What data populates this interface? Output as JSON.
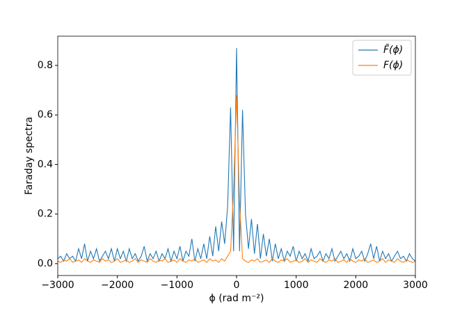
{
  "chart_data": {
    "type": "line",
    "xlabel": "ϕ (rad m⁻²)",
    "ylabel": "Faraday spectra",
    "x": [
      -3000,
      -2950,
      -2900,
      -2850,
      -2800,
      -2750,
      -2700,
      -2650,
      -2600,
      -2550,
      -2500,
      -2450,
      -2400,
      -2350,
      -2300,
      -2250,
      -2200,
      -2150,
      -2100,
      -2050,
      -2000,
      -1950,
      -1900,
      -1850,
      -1800,
      -1750,
      -1700,
      -1650,
      -1600,
      -1550,
      -1500,
      -1450,
      -1400,
      -1350,
      -1300,
      -1250,
      -1200,
      -1150,
      -1100,
      -1050,
      -1000,
      -950,
      -900,
      -850,
      -800,
      -750,
      -700,
      -650,
      -600,
      -550,
      -500,
      -450,
      -400,
      -350,
      -300,
      -250,
      -200,
      -150,
      -100,
      -50,
      0,
      50,
      100,
      150,
      200,
      250,
      300,
      350,
      400,
      450,
      500,
      550,
      600,
      650,
      700,
      750,
      800,
      850,
      900,
      950,
      1000,
      1050,
      1100,
      1150,
      1200,
      1250,
      1300,
      1350,
      1400,
      1450,
      1500,
      1550,
      1600,
      1650,
      1700,
      1750,
      1800,
      1850,
      1900,
      1950,
      2000,
      2050,
      2100,
      2150,
      2200,
      2250,
      2300,
      2350,
      2400,
      2450,
      2500,
      2550,
      2600,
      2650,
      2700,
      2750,
      2800,
      2850,
      2900,
      2950,
      3000
    ],
    "series": [
      {
        "name": "F̃(ϕ)",
        "color": "#1f77b4",
        "values": [
          0.02,
          0.03,
          0.01,
          0.04,
          0.02,
          0.03,
          0.01,
          0.06,
          0.02,
          0.08,
          0.01,
          0.05,
          0.02,
          0.06,
          0.01,
          0.03,
          0.05,
          0.02,
          0.06,
          0.01,
          0.06,
          0.02,
          0.05,
          0.01,
          0.06,
          0.02,
          0.04,
          0.01,
          0.03,
          0.07,
          0.01,
          0.04,
          0.02,
          0.05,
          0.01,
          0.04,
          0.02,
          0.06,
          0.01,
          0.05,
          0.02,
          0.07,
          0.01,
          0.05,
          0.03,
          0.1,
          0.01,
          0.06,
          0.02,
          0.08,
          0.02,
          0.11,
          0.03,
          0.15,
          0.05,
          0.17,
          0.08,
          0.23,
          0.63,
          0.05,
          0.87,
          0.05,
          0.62,
          0.2,
          0.06,
          0.18,
          0.04,
          0.16,
          0.02,
          0.12,
          0.03,
          0.1,
          0.01,
          0.08,
          0.02,
          0.06,
          0.01,
          0.05,
          0.03,
          0.07,
          0.01,
          0.05,
          0.02,
          0.04,
          0.01,
          0.06,
          0.02,
          0.03,
          0.05,
          0.01,
          0.04,
          0.02,
          0.06,
          0.01,
          0.03,
          0.05,
          0.02,
          0.04,
          0.01,
          0.06,
          0.02,
          0.03,
          0.05,
          0.01,
          0.04,
          0.08,
          0.02,
          0.07,
          0.01,
          0.05,
          0.02,
          0.04,
          0.01,
          0.03,
          0.05,
          0.02,
          0.03,
          0.01,
          0.04,
          0.02,
          0.01
        ]
      },
      {
        "name": "F(ϕ)",
        "color": "#ff7f0e",
        "values": [
          0.01,
          0.005,
          0.015,
          0.01,
          0.02,
          0.005,
          0.01,
          0.015,
          0.005,
          0.02,
          0.01,
          0.005,
          0.015,
          0.01,
          0.005,
          0.02,
          0.01,
          0.015,
          0.005,
          0.01,
          0.02,
          0.005,
          0.01,
          0.015,
          0.005,
          0.01,
          0.02,
          0.005,
          0.015,
          0.01,
          0.005,
          0.02,
          0.01,
          0.005,
          0.015,
          0.01,
          0.02,
          0.005,
          0.01,
          0.015,
          0.005,
          0.02,
          0.01,
          0.005,
          0.015,
          0.01,
          0.02,
          0.005,
          0.01,
          0.015,
          0.005,
          0.02,
          0.01,
          0.015,
          0.005,
          0.02,
          0.01,
          0.03,
          0.05,
          0.3,
          0.68,
          0.25,
          0.02,
          0.01,
          0.005,
          0.015,
          0.01,
          0.02,
          0.005,
          0.01,
          0.015,
          0.005,
          0.02,
          0.01,
          0.005,
          0.015,
          0.01,
          0.02,
          0.005,
          0.01,
          0.015,
          0.005,
          0.01,
          0.02,
          0.005,
          0.015,
          0.01,
          0.005,
          0.02,
          0.01,
          0.005,
          0.015,
          0.01,
          0.02,
          0.005,
          0.01,
          0.015,
          0.005,
          0.02,
          0.01,
          0.005,
          0.015,
          0.01,
          0.02,
          0.005,
          0.01,
          0.015,
          0.005,
          0.01,
          0.02,
          0.005,
          0.015,
          0.01,
          0.005,
          0.02,
          0.01,
          0.005,
          0.015,
          0.01,
          0.005,
          0.01
        ]
      }
    ],
    "xlim": [
      -3000,
      3000
    ],
    "xticks": [
      {
        "value": -3000,
        "label": "−3000"
      },
      {
        "value": -2000,
        "label": "−2000"
      },
      {
        "value": -1000,
        "label": "−1000"
      },
      0,
      1000,
      2000,
      3000
    ],
    "ylim": [
      -0.048,
      0.918
    ],
    "yticks": [
      {
        "value": 0,
        "label": "0.0"
      },
      0.2,
      0.4,
      0.6,
      0.8
    ],
    "legend": "upper right"
  }
}
